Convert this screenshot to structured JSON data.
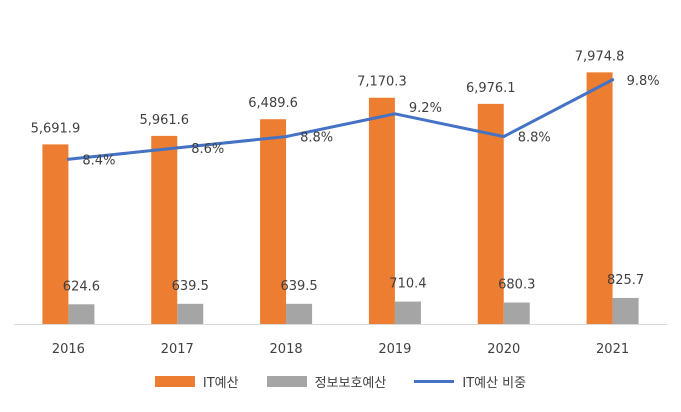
{
  "chart_data": {
    "type": "bar",
    "categories": [
      "2016",
      "2017",
      "2018",
      "2019",
      "2020",
      "2021"
    ],
    "series": [
      {
        "name": "IT예산",
        "kind": "bar",
        "axis": "left",
        "color": "#ED7D31",
        "values": [
          5691.9,
          5961.6,
          6489.6,
          7170.3,
          6976.1,
          7974.8
        ],
        "labels": [
          "5,691.9",
          "5,961.6",
          "6,489.6",
          "7,170.3",
          "6,976.1",
          "7,974.8"
        ]
      },
      {
        "name": "정보보호예산",
        "kind": "bar",
        "axis": "left",
        "color": "#A5A5A5",
        "values": [
          624.6,
          639.5,
          639.5,
          710.4,
          680.3,
          825.7
        ],
        "labels": [
          "624.6",
          "639.5",
          "639.5",
          "710.4",
          "680.3",
          "825.7"
        ]
      },
      {
        "name": "IT예산 비중",
        "kind": "line",
        "axis": "right",
        "color": "#4472C4",
        "values": [
          8.4,
          8.6,
          8.8,
          9.2,
          8.8,
          9.8
        ],
        "labels": [
          "8.4%",
          "8.6%",
          "8.8%",
          "9.2%",
          "8.8%",
          "9.8%"
        ]
      }
    ],
    "ylim": [
      0,
      9000
    ],
    "y2lim": [
      5.5,
      10.5
    ],
    "grid": false,
    "legend": "bottom"
  }
}
